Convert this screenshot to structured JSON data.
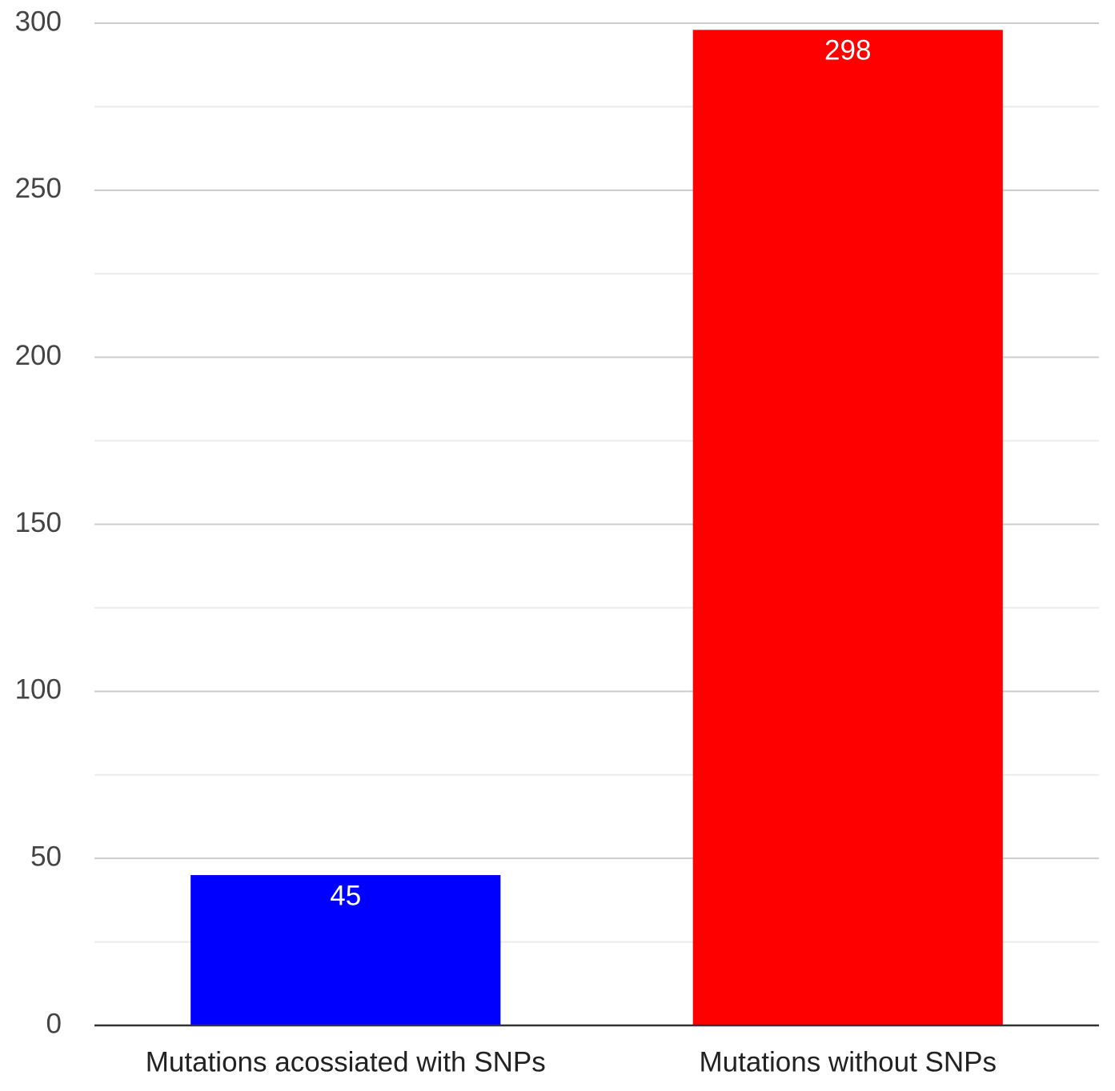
{
  "chart_data": {
    "type": "bar",
    "categories": [
      "Mutations acossiated with SNPs",
      "Mutations without SNPs"
    ],
    "values": [
      45,
      298
    ],
    "colors": [
      "#0000ff",
      "#ff0000"
    ],
    "ylim": [
      0,
      300
    ],
    "yticks": [
      0,
      50,
      100,
      150,
      200,
      250,
      300
    ],
    "minor_yticks": [
      25,
      75,
      125,
      175,
      225,
      275
    ],
    "grid": true,
    "data_labels": true
  }
}
